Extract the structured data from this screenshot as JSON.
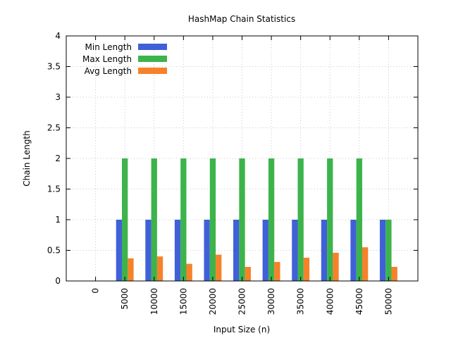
{
  "chart_data": {
    "type": "bar",
    "title": "HashMap Chain Statistics",
    "xlabel": "Input Size (n)",
    "ylabel": "Chain Length",
    "ylim": [
      0,
      4
    ],
    "yticks": [
      "0",
      "0.5",
      "1",
      "1.5",
      "2",
      "2.5",
      "3",
      "3.5",
      "4"
    ],
    "categories": [
      "0",
      "5000",
      "10000",
      "15000",
      "20000",
      "25000",
      "30000",
      "35000",
      "40000",
      "45000",
      "50000"
    ],
    "grid": true,
    "legend_position": "top-left",
    "series": [
      {
        "name": "Min Length",
        "color": "#4060d8",
        "values": [
          0,
          1,
          1,
          1,
          1,
          1,
          1,
          1,
          1,
          1,
          1
        ]
      },
      {
        "name": "Max Length",
        "color": "#3cb44b",
        "values": [
          0,
          2,
          2,
          2,
          2,
          2,
          2,
          2,
          2,
          2,
          1
        ]
      },
      {
        "name": "Avg Length",
        "color": "#f5822a",
        "values": [
          0,
          0.37,
          0.4,
          0.28,
          0.43,
          0.23,
          0.31,
          0.38,
          0.46,
          0.55,
          0.23
        ]
      }
    ]
  }
}
